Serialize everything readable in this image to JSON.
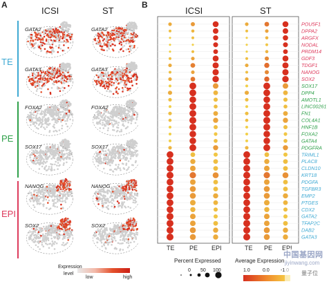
{
  "panels": {
    "a_label": "A",
    "b_label": "B"
  },
  "panel_a": {
    "columns": [
      "ICSI",
      "ST"
    ],
    "groups": [
      {
        "name": "TE",
        "color": "#3fa9d3",
        "genes": [
          "GATA2",
          "GATA3"
        ]
      },
      {
        "name": "PE",
        "color": "#2fa04a",
        "genes": [
          "FOXA2",
          "SOX17"
        ]
      },
      {
        "name": "EPI",
        "color": "#dd3a5c",
        "genes": [
          "NANOG",
          "SOX2"
        ]
      }
    ],
    "expression_legend": {
      "title_line1": "Expression",
      "title_line2": "level",
      "low": "low",
      "high": "high"
    }
  },
  "panel_b": {
    "column_groups": [
      "ICSI",
      "ST"
    ],
    "x_labels": [
      "TE",
      "PE",
      "EPI",
      "TE",
      "PE",
      "EPI"
    ],
    "legend_size_title": "Percent Expressed",
    "legend_size_ticks": [
      "0",
      "50",
      "100"
    ],
    "legend_color_title": "Average Expression",
    "legend_color_ticks": [
      "1.0",
      "0.0",
      "-1.0"
    ],
    "watermark_line1": "中国基因网",
    "watermark_line2": "jiyinwang.com",
    "watermark_badge": "量子位"
  },
  "chart_data": {
    "type": "dotplot",
    "title": "",
    "xlabel": "",
    "ylabel": "",
    "categories": [
      "TE",
      "PE",
      "EPI"
    ],
    "genes": [
      {
        "name": "POU5F1",
        "lineage": "EPI"
      },
      {
        "name": "DPPA2",
        "lineage": "EPI"
      },
      {
        "name": "ARGFX",
        "lineage": "EPI"
      },
      {
        "name": "NODAL",
        "lineage": "EPI"
      },
      {
        "name": "PRDM14",
        "lineage": "EPI"
      },
      {
        "name": "GDF3",
        "lineage": "EPI"
      },
      {
        "name": "TDGF1",
        "lineage": "EPI"
      },
      {
        "name": "NANOG",
        "lineage": "EPI"
      },
      {
        "name": "SOX2",
        "lineage": "EPI"
      },
      {
        "name": "SOX17",
        "lineage": "PE"
      },
      {
        "name": "DPP4",
        "lineage": "PE"
      },
      {
        "name": "AMOTL1",
        "lineage": "PE"
      },
      {
        "name": "LINC00261",
        "lineage": "PE"
      },
      {
        "name": "FN1",
        "lineage": "PE"
      },
      {
        "name": "COL4A1",
        "lineage": "PE"
      },
      {
        "name": "HNF1B",
        "lineage": "PE"
      },
      {
        "name": "FOXA2",
        "lineage": "PE"
      },
      {
        "name": "GATA4",
        "lineage": "PE"
      },
      {
        "name": "PDGFRA",
        "lineage": "PE"
      },
      {
        "name": "TRIML1",
        "lineage": "TE"
      },
      {
        "name": "PLAC8",
        "lineage": "TE"
      },
      {
        "name": "CLDN10",
        "lineage": "TE"
      },
      {
        "name": "KRT18",
        "lineage": "TE"
      },
      {
        "name": "PDGFA",
        "lineage": "TE"
      },
      {
        "name": "TGFBR3",
        "lineage": "TE"
      },
      {
        "name": "EMP2",
        "lineage": "TE"
      },
      {
        "name": "PTGES",
        "lineage": "TE"
      },
      {
        "name": "CDX2",
        "lineage": "TE"
      },
      {
        "name": "GATA2",
        "lineage": "TE"
      },
      {
        "name": "TFAP2C",
        "lineage": "TE"
      },
      {
        "name": "DAB2",
        "lineage": "TE"
      },
      {
        "name": "GATA3",
        "lineage": "TE"
      }
    ],
    "lineage_colors": {
      "EPI": "#dd3a5c",
      "PE": "#2fa04a",
      "TE": "#3fa9d3"
    },
    "size_scale": {
      "label": "Percent Expressed",
      "range": [
        0,
        100
      ]
    },
    "color_scale": {
      "label": "Average Expression",
      "range": [
        -1.0,
        1.0
      ],
      "low_color": "#f5e14a",
      "high_color": "#d7301f"
    },
    "panels": [
      {
        "name": "ICSI",
        "percent": [
          [
            20,
            30,
            70
          ],
          [
            10,
            15,
            60
          ],
          [
            5,
            10,
            50
          ],
          [
            5,
            5,
            45
          ],
          [
            5,
            10,
            40
          ],
          [
            10,
            20,
            70
          ],
          [
            20,
            40,
            75
          ],
          [
            10,
            20,
            80
          ],
          [
            20,
            40,
            85
          ],
          [
            10,
            95,
            60
          ],
          [
            30,
            95,
            40
          ],
          [
            20,
            90,
            30
          ],
          [
            10,
            95,
            25
          ],
          [
            20,
            95,
            40
          ],
          [
            15,
            100,
            50
          ],
          [
            10,
            95,
            30
          ],
          [
            10,
            90,
            20
          ],
          [
            10,
            90,
            25
          ],
          [
            20,
            95,
            50
          ],
          [
            95,
            40,
            30
          ],
          [
            95,
            50,
            40
          ],
          [
            95,
            60,
            40
          ],
          [
            100,
            80,
            70
          ],
          [
            95,
            60,
            40
          ],
          [
            95,
            70,
            40
          ],
          [
            95,
            70,
            50
          ],
          [
            95,
            60,
            40
          ],
          [
            95,
            50,
            30
          ],
          [
            100,
            60,
            30
          ],
          [
            100,
            60,
            40
          ],
          [
            100,
            70,
            50
          ],
          [
            100,
            70,
            50
          ]
        ],
        "average": [
          [
            -0.4,
            -0.2,
            1.0
          ],
          [
            -0.6,
            -0.5,
            1.0
          ],
          [
            -0.8,
            -0.6,
            1.0
          ],
          [
            -0.8,
            -0.8,
            1.0
          ],
          [
            -0.8,
            -0.6,
            1.0
          ],
          [
            -0.6,
            -0.3,
            1.0
          ],
          [
            -0.4,
            0.1,
            1.0
          ],
          [
            -0.6,
            -0.3,
            1.0
          ],
          [
            -0.4,
            0.2,
            1.0
          ],
          [
            -0.8,
            1.0,
            -0.2
          ],
          [
            -0.4,
            1.0,
            -0.5
          ],
          [
            -0.6,
            1.0,
            -0.6
          ],
          [
            -0.8,
            1.0,
            -0.6
          ],
          [
            -0.6,
            1.0,
            -0.4
          ],
          [
            -0.6,
            1.0,
            -0.3
          ],
          [
            -0.8,
            1.0,
            -0.6
          ],
          [
            -0.8,
            1.0,
            -0.7
          ],
          [
            -0.8,
            1.0,
            -0.6
          ],
          [
            -0.5,
            1.0,
            -0.2
          ],
          [
            1.0,
            -0.6,
            -0.7
          ],
          [
            1.0,
            -0.4,
            -0.6
          ],
          [
            1.0,
            -0.3,
            -0.6
          ],
          [
            1.0,
            0.2,
            -0.1
          ],
          [
            1.0,
            -0.3,
            -0.6
          ],
          [
            1.0,
            -0.2,
            -0.6
          ],
          [
            1.0,
            -0.2,
            -0.4
          ],
          [
            1.0,
            -0.4,
            -0.5
          ],
          [
            1.0,
            -0.5,
            -0.6
          ],
          [
            1.0,
            -0.3,
            -0.7
          ],
          [
            1.0,
            -0.3,
            -0.6
          ],
          [
            1.0,
            -0.2,
            -0.4
          ],
          [
            1.0,
            -0.2,
            -0.4
          ]
        ]
      },
      {
        "name": "ST",
        "percent": [
          [
            20,
            40,
            70
          ],
          [
            10,
            20,
            60
          ],
          [
            5,
            15,
            55
          ],
          [
            5,
            10,
            45
          ],
          [
            5,
            15,
            40
          ],
          [
            10,
            30,
            70
          ],
          [
            20,
            50,
            75
          ],
          [
            10,
            30,
            80
          ],
          [
            20,
            50,
            85
          ],
          [
            10,
            95,
            60
          ],
          [
            30,
            95,
            40
          ],
          [
            20,
            90,
            30
          ],
          [
            10,
            95,
            25
          ],
          [
            20,
            95,
            40
          ],
          [
            15,
            100,
            50
          ],
          [
            10,
            95,
            30
          ],
          [
            10,
            90,
            20
          ],
          [
            10,
            90,
            25
          ],
          [
            20,
            95,
            50
          ],
          [
            95,
            40,
            30
          ],
          [
            95,
            50,
            40
          ],
          [
            95,
            60,
            40
          ],
          [
            100,
            80,
            70
          ],
          [
            95,
            60,
            40
          ],
          [
            95,
            70,
            40
          ],
          [
            95,
            70,
            50
          ],
          [
            95,
            60,
            40
          ],
          [
            95,
            50,
            30
          ],
          [
            100,
            60,
            30
          ],
          [
            100,
            60,
            40
          ],
          [
            100,
            70,
            50
          ],
          [
            100,
            70,
            50
          ]
        ],
        "average": [
          [
            -0.4,
            0.2,
            1.0
          ],
          [
            -0.6,
            -0.3,
            1.0
          ],
          [
            -0.8,
            -0.5,
            1.0
          ],
          [
            -0.8,
            -0.7,
            1.0
          ],
          [
            -0.8,
            -0.5,
            1.0
          ],
          [
            -0.6,
            0.0,
            1.0
          ],
          [
            -0.4,
            0.3,
            1.0
          ],
          [
            -0.6,
            0.0,
            1.0
          ],
          [
            -0.4,
            0.4,
            1.0
          ],
          [
            -0.8,
            1.0,
            -0.2
          ],
          [
            -0.4,
            1.0,
            -0.5
          ],
          [
            -0.6,
            1.0,
            -0.6
          ],
          [
            -0.8,
            1.0,
            -0.6
          ],
          [
            -0.6,
            1.0,
            -0.4
          ],
          [
            -0.6,
            1.0,
            -0.3
          ],
          [
            -0.8,
            1.0,
            -0.6
          ],
          [
            -0.8,
            1.0,
            -0.7
          ],
          [
            -0.8,
            1.0,
            -0.6
          ],
          [
            -0.5,
            1.0,
            -0.2
          ],
          [
            1.0,
            -0.6,
            -0.7
          ],
          [
            1.0,
            -0.4,
            -0.6
          ],
          [
            1.0,
            -0.3,
            -0.6
          ],
          [
            1.0,
            0.2,
            -0.1
          ],
          [
            1.0,
            -0.3,
            -0.6
          ],
          [
            1.0,
            -0.2,
            -0.6
          ],
          [
            1.0,
            -0.2,
            -0.4
          ],
          [
            1.0,
            -0.4,
            -0.5
          ],
          [
            1.0,
            -0.5,
            -0.6
          ],
          [
            1.0,
            -0.3,
            -0.7
          ],
          [
            1.0,
            -0.3,
            -0.6
          ],
          [
            1.0,
            -0.2,
            -0.4
          ],
          [
            1.0,
            -0.2,
            -0.4
          ]
        ]
      }
    ]
  }
}
